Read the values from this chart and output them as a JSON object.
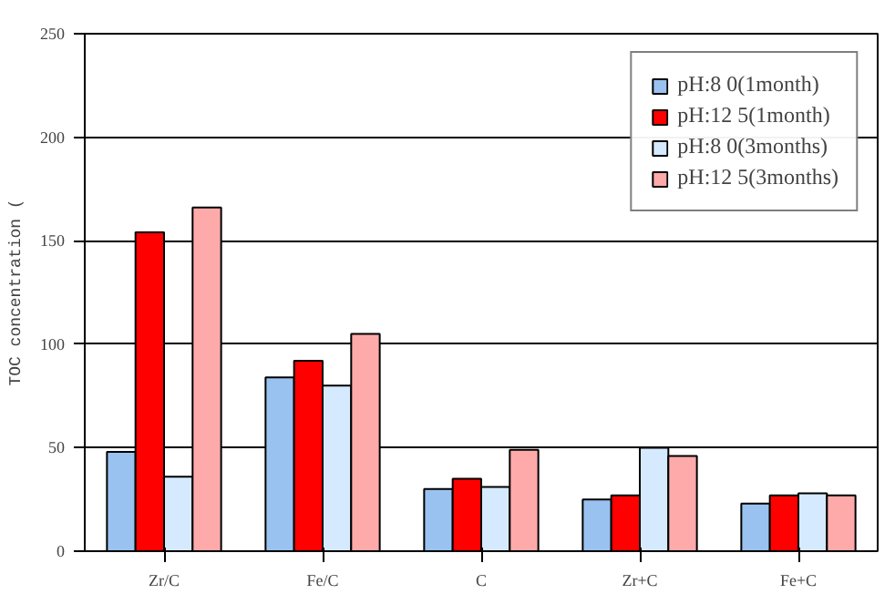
{
  "chart_data": {
    "type": "bar",
    "ylabel": "TOC concentration (",
    "categories": [
      "Zr/C",
      "Fe/C",
      "C",
      "Zr+C",
      "Fe+C"
    ],
    "series": [
      {
        "name": "pH:8 0(1month)",
        "color": "#99c2f0",
        "values": [
          48,
          84,
          30,
          25,
          23
        ]
      },
      {
        "name": "pH:12 5(1month)",
        "color": "#ff0000",
        "values": [
          154,
          92,
          35,
          27,
          27
        ]
      },
      {
        "name": "pH:8 0(3months)",
        "color": "#d6eaff",
        "values": [
          36,
          80,
          31,
          50,
          28
        ]
      },
      {
        "name": "pH:12 5(3months)",
        "color": "#ffaaaa",
        "values": [
          166,
          105,
          49,
          46,
          27
        ]
      }
    ],
    "ylim": [
      0,
      250
    ],
    "yticks": [
      0,
      50,
      100,
      150,
      200,
      250
    ],
    "grid": "y",
    "legend": "top right"
  }
}
